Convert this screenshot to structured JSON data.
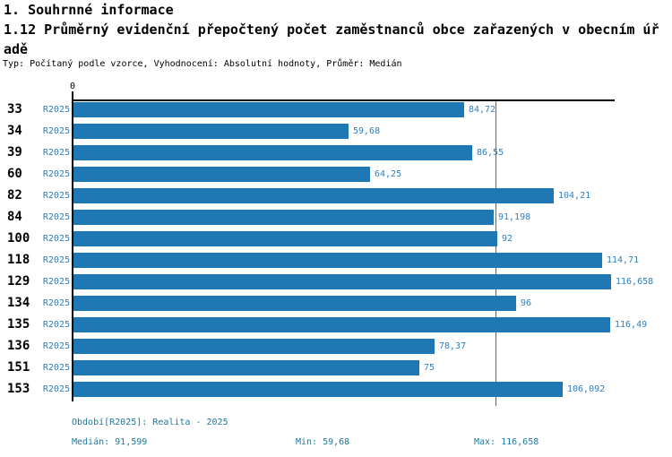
{
  "header": {
    "line1": "1. Souhrnné informace",
    "line2": "1.12 Průměrný evidenční přepočtený počet zaměstnanců obce zařazených v obecním úřadě",
    "meta": "Typ: Počítaný podle vzorce, Vyhodnocení: Absolutní hodnoty, Průměr: Medián"
  },
  "chart_data": {
    "type": "bar",
    "orientation": "horizontal",
    "title": "1.12 Průměrný evidenční přepočtený počet zaměstnanců obce zařazených v obecním úřadě",
    "categories": [
      "33",
      "34",
      "39",
      "60",
      "82",
      "84",
      "100",
      "118",
      "129",
      "134",
      "135",
      "136",
      "151",
      "153"
    ],
    "series": [
      {
        "name": "R2025",
        "values": [
          84.72,
          59.68,
          86.55,
          64.25,
          104.21,
          91.198,
          92,
          114.71,
          116.658,
          96,
          116.49,
          78.37,
          75,
          106.092
        ],
        "labels": [
          "84,72",
          "59,68",
          "86,55",
          "64,25",
          "104,21",
          "91,198",
          "92",
          "114,71",
          "116,658",
          "96",
          "116,49",
          "78,37",
          "75",
          "106,092"
        ]
      }
    ],
    "x_axis_ticks": [
      "0"
    ],
    "xlim": [
      0,
      117.4
    ],
    "median": 91.599,
    "min": 59.68,
    "max": 116.658,
    "grid": false,
    "legend": false
  },
  "footer": {
    "period": "Období[R2025]: Realita - 2025",
    "median": "Medián: 91,599",
    "min": "Min: 59,68",
    "max": "Max: 116,658"
  },
  "colors": {
    "bar": "#1f77b4",
    "value_text": "#2f80c0",
    "footer_text": "#1a7aa0",
    "median_line": "#2778b4",
    "axis": "#000000"
  }
}
